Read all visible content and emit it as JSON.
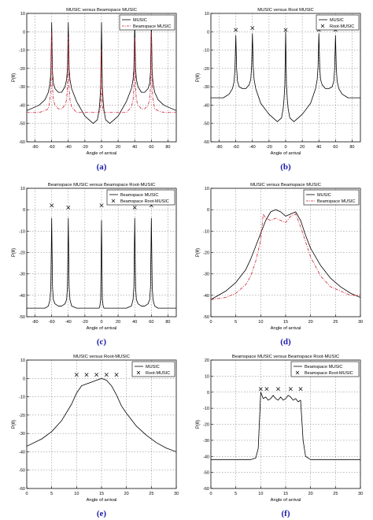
{
  "panels": [
    {
      "caption": "(a)",
      "chart_data": {
        "type": "line",
        "title": "MUSIC versus Beamspace MUSIC",
        "xlabel": "Angle of arrival",
        "ylabel": "P(θ)",
        "xlim": [
          -90,
          90
        ],
        "ylim": [
          -60,
          10
        ],
        "xticks": [
          -80,
          -60,
          -40,
          -20,
          0,
          20,
          40,
          60,
          80
        ],
        "yticks": [
          10,
          0,
          -10,
          -20,
          -30,
          -40,
          -50,
          -60
        ],
        "grid": true,
        "legend_position": "top-right",
        "peaks": [
          -60,
          -40,
          0,
          40,
          60
        ],
        "series": [
          {
            "name": "MUSIC",
            "style": "solid",
            "color": "#000000",
            "x": [
              -90,
              -75,
              -68,
              -64,
              -62,
              -61,
              -60,
              -59,
              -58,
              -56,
              -52,
              -48,
              -44,
              -42,
              -41,
              -40,
              -39,
              -38,
              -36,
              -30,
              -20,
              -10,
              -5,
              -3,
              -2,
              -1,
              0,
              1,
              2,
              3,
              5,
              10,
              20,
              30,
              36,
              38,
              39,
              40,
              41,
              42,
              44,
              48,
              52,
              56,
              58,
              59,
              60,
              61,
              62,
              64,
              68,
              75,
              90
            ],
            "y": [
              -43,
              -40,
              -37,
              -33,
              -28,
              -22,
              5,
              -22,
              -28,
              -31,
              -33,
              -33,
              -30,
              -26,
              -20,
              5,
              -20,
              -26,
              -31,
              -38,
              -46,
              -50,
              -48,
              -43,
              -38,
              -30,
              5,
              -30,
              -38,
              -43,
              -48,
              -50,
              -46,
              -38,
              -31,
              -26,
              -20,
              5,
              -20,
              -26,
              -30,
              -33,
              -33,
              -31,
              -28,
              -22,
              5,
              -22,
              -28,
              -33,
              -37,
              -40,
              -43
            ]
          },
          {
            "name": "Beamspace MUSIC",
            "style": "dashdot",
            "color": "#cc2233",
            "x": [
              -90,
              -75,
              -68,
              -64,
              -62,
              -61,
              -60,
              -59,
              -58,
              -56,
              -52,
              -48,
              -44,
              -42,
              -41,
              -40,
              -39,
              -38,
              -36,
              -30,
              -20,
              -10,
              -5,
              -3,
              -2,
              -1,
              0,
              1,
              2,
              3,
              5,
              10,
              20,
              30,
              36,
              38,
              39,
              40,
              41,
              42,
              44,
              48,
              52,
              56,
              58,
              59,
              60,
              61,
              62,
              64,
              68,
              75,
              90
            ],
            "y": [
              -44,
              -44,
              -43,
              -42,
              -37,
              -30,
              0,
              -30,
              -37,
              -40,
              -42,
              -42,
              -40,
              -37,
              -30,
              -3,
              -30,
              -37,
              -41,
              -44,
              -44,
              -44,
              -44,
              -44,
              -43,
              -40,
              -10,
              -40,
              -43,
              -44,
              -44,
              -44,
              -44,
              -44,
              -41,
              -37,
              -30,
              -3,
              -30,
              -37,
              -40,
              -42,
              -42,
              -40,
              -37,
              -30,
              0,
              -30,
              -37,
              -42,
              -43,
              -44,
              -44
            ]
          }
        ]
      }
    },
    {
      "caption": "(b)",
      "chart_data": {
        "type": "line",
        "title": "MUSIC versus Root MUSIC",
        "xlabel": "Angle of arrival",
        "ylabel": "P(θ)",
        "xlim": [
          -90,
          90
        ],
        "ylim": [
          -60,
          10
        ],
        "xticks": [
          -80,
          -60,
          -40,
          -20,
          0,
          20,
          40,
          60,
          80
        ],
        "yticks": [
          10,
          0,
          -10,
          -20,
          -30,
          -40,
          -50,
          -60
        ],
        "grid": true,
        "legend_position": "top-right",
        "series": [
          {
            "name": "MUSIC",
            "style": "solid",
            "color": "#000000",
            "x": [
              -90,
              -75,
              -68,
              -64,
              -62,
              -61,
              -60,
              -59,
              -58,
              -56,
              -52,
              -48,
              -44,
              -42,
              -41,
              -40,
              -39,
              -38,
              -36,
              -30,
              -20,
              -10,
              -5,
              -3,
              -2,
              -1,
              0,
              1,
              2,
              3,
              5,
              10,
              20,
              30,
              36,
              38,
              39,
              40,
              41,
              42,
              44,
              48,
              52,
              56,
              58,
              59,
              60,
              61,
              62,
              64,
              68,
              75,
              90
            ],
            "y": [
              -36,
              -36,
              -34,
              -31,
              -27,
              -20,
              -2,
              -20,
              -27,
              -30,
              -31,
              -31,
              -29,
              -26,
              -19,
              -1,
              -19,
              -26,
              -31,
              -39,
              -45,
              -49,
              -47,
              -42,
              -37,
              -29,
              0,
              -29,
              -37,
              -42,
              -47,
              -49,
              -45,
              -39,
              -31,
              -26,
              -19,
              -1,
              -19,
              -26,
              -29,
              -31,
              -31,
              -30,
              -27,
              -20,
              -2,
              -20,
              -27,
              -31,
              -34,
              -36,
              -36
            ]
          },
          {
            "name": "Root-MUSIC",
            "style": "marker-x",
            "color": "#000000",
            "x": [
              -60,
              -40,
              0,
              40,
              60
            ],
            "y": [
              1,
              2,
              1,
              1,
              1
            ]
          }
        ]
      }
    },
    {
      "caption": "(c)",
      "chart_data": {
        "type": "line",
        "title": "Beamspace MUSIC versus Beamspace Root-MUSIC",
        "xlabel": "Angle of arrival",
        "ylabel": "P(θ)",
        "xlim": [
          -90,
          90
        ],
        "ylim": [
          -50,
          10
        ],
        "xticks": [
          -80,
          -60,
          -40,
          -20,
          0,
          20,
          40,
          60,
          80
        ],
        "yticks": [
          10,
          0,
          -10,
          -20,
          -30,
          -40,
          -50
        ],
        "grid": true,
        "legend_position": "top-right",
        "series": [
          {
            "name": "Beamspace MUSIC",
            "style": "solid",
            "color": "#000000",
            "x": [
              -90,
              -75,
              -68,
              -64,
              -62,
              -61,
              -60,
              -59,
              -58,
              -56,
              -52,
              -48,
              -44,
              -42,
              -41,
              -40,
              -39,
              -38,
              -36,
              -30,
              -20,
              -10,
              -5,
              -3,
              -2,
              -1,
              0,
              1,
              2,
              3,
              5,
              10,
              20,
              30,
              36,
              38,
              39,
              40,
              41,
              42,
              44,
              48,
              52,
              56,
              58,
              59,
              60,
              61,
              62,
              64,
              68,
              75,
              90
            ],
            "y": [
              -46,
              -46,
              -46,
              -45,
              -42,
              -36,
              -4,
              -36,
              -42,
              -44,
              -45,
              -45,
              -44,
              -42,
              -36,
              -4,
              -36,
              -42,
              -45,
              -46,
              -46,
              -46,
              -46,
              -46,
              -45,
              -42,
              -5,
              -42,
              -45,
              -46,
              -46,
              -46,
              -46,
              -46,
              -45,
              -42,
              -36,
              -4,
              -36,
              -42,
              -44,
              -45,
              -45,
              -44,
              -42,
              -36,
              -4,
              -36,
              -42,
              -45,
              -46,
              -46,
              -46
            ]
          },
          {
            "name": "Beamspace Root-MUSIC",
            "style": "marker-x",
            "color": "#000000",
            "x": [
              -60,
              -40,
              0,
              40,
              60
            ],
            "y": [
              2,
              1,
              2,
              1,
              2
            ]
          }
        ]
      }
    },
    {
      "caption": "(d)",
      "chart_data": {
        "type": "line",
        "title": "MUSIC versus Beamspace MUSIC",
        "xlabel": "Angle of arrival",
        "ylabel": "P(θ)",
        "xlim": [
          0,
          30
        ],
        "ylim": [
          -50,
          10
        ],
        "xticks": [
          0,
          5,
          10,
          15,
          20,
          25,
          30
        ],
        "yticks": [
          10,
          0,
          -10,
          -20,
          -30,
          -40,
          -50
        ],
        "grid": true,
        "legend_position": "top-right",
        "series": [
          {
            "name": "MUSIC",
            "style": "solid",
            "color": "#000000",
            "x": [
              0,
              3,
              5,
              7,
              8,
              9,
              10,
              11,
              12,
              13,
              14,
              15,
              16,
              17,
              18,
              19,
              20,
              22,
              24,
              26,
              28,
              30
            ],
            "y": [
              -42,
              -38,
              -34,
              -28,
              -23,
              -17,
              -11,
              -5,
              -1,
              0,
              -1,
              -3,
              -2,
              -1,
              -5,
              -12,
              -18,
              -26,
              -32,
              -36,
              -39,
              -41
            ]
          },
          {
            "name": "Beamspace MUSIC",
            "style": "dashdot",
            "color": "#cc2233",
            "x": [
              0,
              3,
              5,
              7,
              8,
              9,
              10,
              10.5,
              11,
              12,
              13,
              14,
              15,
              16,
              17,
              18,
              19,
              20,
              22,
              24,
              26,
              28,
              30
            ],
            "y": [
              -42,
              -41,
              -39,
              -35,
              -31,
              -24,
              -14,
              -2,
              -4,
              -5,
              -4,
              -5,
              -6,
              -3,
              -2,
              -8,
              -15,
              -22,
              -31,
              -36,
              -38,
              -40,
              -40
            ]
          }
        ]
      }
    },
    {
      "caption": "(e)",
      "chart_data": {
        "type": "line",
        "title": "MUSIC versus Root-MUSIC",
        "xlabel": "Angle of arrival",
        "ylabel": "P(θ)",
        "xlim": [
          0,
          30
        ],
        "ylim": [
          -60,
          10
        ],
        "xticks": [
          0,
          5,
          10,
          15,
          20,
          25,
          30
        ],
        "yticks": [
          10,
          0,
          -10,
          -20,
          -30,
          -40,
          -50,
          -60
        ],
        "grid": true,
        "legend_position": "top-right",
        "series": [
          {
            "name": "MUSIC",
            "style": "solid",
            "color": "#000000",
            "x": [
              0,
              3,
              5,
              7,
              9,
              10,
              11,
              12,
              13,
              14,
              15,
              16,
              17,
              18,
              19,
              20,
              22,
              24,
              26,
              28,
              30
            ],
            "y": [
              -37,
              -33,
              -29,
              -23,
              -14,
              -8,
              -4,
              -3,
              -2,
              -1,
              0,
              -1,
              -4,
              -9,
              -15,
              -19,
              -26,
              -31,
              -35,
              -38,
              -40
            ]
          },
          {
            "name": "Root-MUSIC",
            "style": "marker-x",
            "color": "#000000",
            "x": [
              10,
              12,
              14,
              16,
              18
            ],
            "y": [
              2,
              2,
              2,
              2,
              2
            ]
          }
        ]
      }
    },
    {
      "caption": "(f)",
      "chart_data": {
        "type": "line",
        "title": "Beamspace MUSIC versus Beamspace Root-MUSIC",
        "xlabel": "Angle of arrival",
        "ylabel": "P(θ)",
        "xlim": [
          0,
          30
        ],
        "ylim": [
          -60,
          20
        ],
        "xticks": [
          0,
          5,
          10,
          15,
          20,
          25,
          30
        ],
        "yticks": [
          20,
          10,
          0,
          -10,
          -20,
          -30,
          -40,
          -50,
          -60
        ],
        "grid": true,
        "legend_position": "top-right",
        "series": [
          {
            "name": "Beamspace MUSIC",
            "style": "solid",
            "color": "#000000",
            "x": [
              0,
              3,
              6,
              8,
              9,
              9.5,
              10,
              10.5,
              11,
              11.5,
              12,
              12.5,
              13,
              13.5,
              14,
              14.5,
              15,
              15.5,
              16,
              16.5,
              17,
              17.5,
              18,
              18.5,
              19,
              20,
              22,
              25,
              28,
              30
            ],
            "y": [
              -42,
              -42,
              -42,
              -42,
              -41,
              -35,
              0,
              -4,
              -3,
              -5,
              -4,
              -2,
              -4,
              -5,
              -3,
              -5,
              -4,
              -2,
              -3,
              -5,
              -4,
              -6,
              -5,
              -30,
              -40,
              -42,
              -42,
              -42,
              -42,
              -42
            ]
          },
          {
            "name": "Beamspace Root-MUSIC",
            "style": "marker-x",
            "color": "#000000",
            "x": [
              10,
              11.2,
              13.5,
              16,
              18
            ],
            "y": [
              2,
              2,
              2,
              2,
              2
            ]
          }
        ]
      }
    }
  ]
}
